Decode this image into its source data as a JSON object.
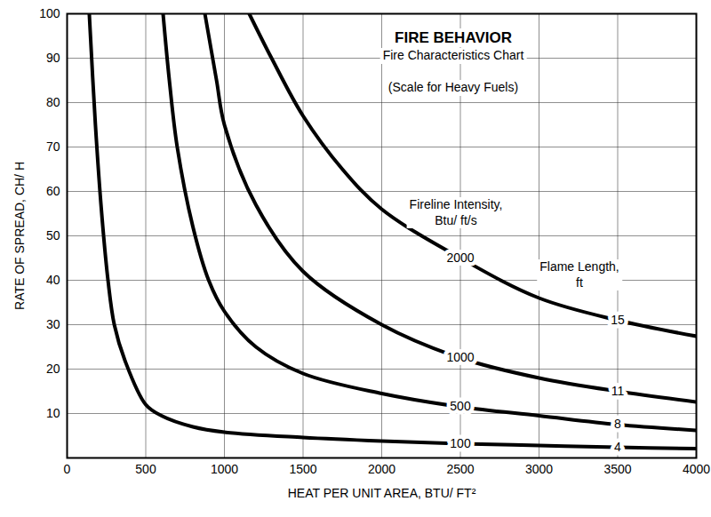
{
  "chart_data": {
    "type": "line",
    "title": "FIRE BEHAVIOR",
    "subtitle": "Fire Characteristics Chart",
    "annotations": [
      "(Scale for Heavy Fuels)",
      "Fireline Intensity, Btu/ ft/s",
      "Flame Length, ft"
    ],
    "x_label": "HEAT PER UNIT AREA, BTU/ FT²",
    "y_label": "RATE OF SPREAD, CH/ H",
    "xlim": [
      0,
      4000
    ],
    "xticks": [
      0,
      500,
      1000,
      1500,
      2000,
      2500,
      3000,
      3500,
      4000
    ],
    "ylim": [
      0,
      100
    ],
    "yticks": [
      10,
      20,
      30,
      40,
      50,
      60,
      70,
      80,
      90,
      100
    ],
    "grid": true,
    "series": [
      {
        "name": "100",
        "flame_length": 4,
        "color": "#000000",
        "x": [
          141,
          180,
          220,
          260,
          300,
          367,
          500,
          600,
          800,
          1000,
          1500,
          2000,
          2500,
          3000,
          3500,
          4000
        ],
        "values": [
          100,
          75,
          55,
          40,
          30,
          22,
          12,
          9.5,
          7,
          5.8,
          4.6,
          3.8,
          3.2,
          2.8,
          2.4,
          2.1
        ]
      },
      {
        "name": "500",
        "flame_length": 8,
        "color": "#000000",
        "x": [
          610,
          650,
          700,
          800,
          900,
          1000,
          1200,
          1500,
          2000,
          2500,
          3000,
          3500,
          4000
        ],
        "values": [
          100,
          85,
          70,
          52,
          40,
          33,
          25,
          19,
          14.5,
          11.5,
          9.5,
          7.5,
          6.2
        ]
      },
      {
        "name": "1000",
        "flame_length": 11,
        "color": "#000000",
        "x": [
          876,
          950,
          1000,
          1200,
          1500,
          2000,
          2500,
          3000,
          3500,
          4000
        ],
        "values": [
          100,
          85,
          75,
          57,
          42,
          30,
          22.5,
          18,
          15,
          12.6
        ]
      },
      {
        "name": "2000",
        "flame_length": 15,
        "color": "#000000",
        "x": [
          1158,
          1300,
          1500,
          1750,
          2000,
          2500,
          3000,
          3500,
          4000
        ],
        "values": [
          100,
          90,
          77,
          65,
          56,
          45,
          36,
          31,
          27.4
        ]
      }
    ]
  }
}
